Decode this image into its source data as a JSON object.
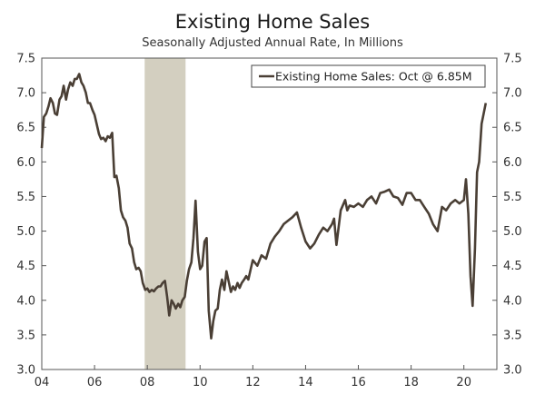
{
  "chart_data": {
    "type": "line",
    "title": "Existing Home Sales",
    "subtitle": "Seasonally Adjusted Annual Rate, In Millions",
    "xlabel": "",
    "ylabel": "",
    "xlim": [
      2004,
      2021.25
    ],
    "ylim": [
      3.0,
      7.5
    ],
    "x_ticks": [
      {
        "value": 2004,
        "label": "04"
      },
      {
        "value": 2006,
        "label": "06"
      },
      {
        "value": 2008,
        "label": "08"
      },
      {
        "value": 2010,
        "label": "10"
      },
      {
        "value": 2012,
        "label": "12"
      },
      {
        "value": 2014,
        "label": "14"
      },
      {
        "value": 2016,
        "label": "16"
      },
      {
        "value": 2018,
        "label": "18"
      },
      {
        "value": 2020,
        "label": "20"
      }
    ],
    "y_ticks": [
      "3.0",
      "3.5",
      "4.0",
      "4.5",
      "5.0",
      "5.5",
      "6.0",
      "6.5",
      "7.0",
      "7.5"
    ],
    "recession": {
      "start": 2007.9,
      "end": 2009.45,
      "color": "#d3cfc0"
    },
    "legend": {
      "label": "Existing Home Sales: Oct @ 6.85M",
      "position": "top-right"
    },
    "series": [
      {
        "name": "Existing Home Sales",
        "color": "#4a3f35",
        "x": [
          2004.0,
          2004.08,
          2004.17,
          2004.25,
          2004.33,
          2004.42,
          2004.5,
          2004.58,
          2004.67,
          2004.75,
          2004.83,
          2004.92,
          2005.0,
          2005.08,
          2005.17,
          2005.25,
          2005.33,
          2005.42,
          2005.5,
          2005.58,
          2005.67,
          2005.75,
          2005.83,
          2005.92,
          2006.0,
          2006.08,
          2006.17,
          2006.25,
          2006.33,
          2006.42,
          2006.5,
          2006.58,
          2006.67,
          2006.75,
          2006.83,
          2006.92,
          2007.0,
          2007.08,
          2007.17,
          2007.25,
          2007.33,
          2007.42,
          2007.5,
          2007.58,
          2007.67,
          2007.75,
          2007.83,
          2007.92,
          2008.0,
          2008.08,
          2008.17,
          2008.25,
          2008.33,
          2008.42,
          2008.5,
          2008.58,
          2008.67,
          2008.75,
          2008.83,
          2008.92,
          2009.0,
          2009.08,
          2009.17,
          2009.25,
          2009.33,
          2009.42,
          2009.5,
          2009.58,
          2009.67,
          2009.75,
          2009.83,
          2009.92,
          2010.0,
          2010.08,
          2010.17,
          2010.25,
          2010.33,
          2010.42,
          2010.5,
          2010.58,
          2010.67,
          2010.75,
          2010.83,
          2010.92,
          2011.0,
          2011.08,
          2011.17,
          2011.25,
          2011.33,
          2011.42,
          2011.5,
          2011.58,
          2011.67,
          2011.75,
          2011.83,
          2011.92,
          2012.0,
          2012.17,
          2012.33,
          2012.5,
          2012.67,
          2012.83,
          2013.0,
          2013.17,
          2013.33,
          2013.5,
          2013.67,
          2013.83,
          2014.0,
          2014.17,
          2014.33,
          2014.5,
          2014.67,
          2014.83,
          2015.0,
          2015.08,
          2015.17,
          2015.33,
          2015.5,
          2015.58,
          2015.67,
          2015.83,
          2016.0,
          2016.17,
          2016.33,
          2016.5,
          2016.67,
          2016.83,
          2017.0,
          2017.17,
          2017.33,
          2017.5,
          2017.67,
          2017.83,
          2018.0,
          2018.17,
          2018.33,
          2018.5,
          2018.67,
          2018.83,
          2019.0,
          2019.17,
          2019.33,
          2019.5,
          2019.67,
          2019.83,
          2020.0,
          2020.08,
          2020.17,
          2020.25,
          2020.33,
          2020.42,
          2020.5,
          2020.58,
          2020.67,
          2020.75,
          2020.83
        ],
        "y": [
          6.2,
          6.65,
          6.7,
          6.8,
          6.92,
          6.85,
          6.7,
          6.68,
          6.9,
          6.95,
          7.1,
          6.9,
          7.05,
          7.15,
          7.1,
          7.2,
          7.2,
          7.27,
          7.15,
          7.1,
          7.0,
          6.85,
          6.85,
          6.75,
          6.68,
          6.55,
          6.4,
          6.33,
          6.35,
          6.3,
          6.37,
          6.35,
          6.42,
          5.78,
          5.8,
          5.62,
          5.3,
          5.2,
          5.15,
          5.05,
          4.82,
          4.75,
          4.55,
          4.45,
          4.47,
          4.42,
          4.25,
          4.15,
          4.17,
          4.12,
          4.15,
          4.13,
          4.17,
          4.2,
          4.2,
          4.25,
          4.28,
          4.05,
          3.78,
          4.0,
          3.95,
          3.88,
          3.95,
          3.9,
          4.0,
          4.05,
          4.28,
          4.45,
          4.55,
          4.9,
          5.44,
          4.7,
          4.45,
          4.5,
          4.85,
          4.9,
          3.85,
          3.45,
          3.7,
          3.85,
          3.88,
          4.15,
          4.3,
          4.15,
          4.42,
          4.28,
          4.12,
          4.2,
          4.15,
          4.25,
          4.18,
          4.25,
          4.3,
          4.35,
          4.3,
          4.45,
          4.58,
          4.5,
          4.65,
          4.6,
          4.82,
          4.92,
          5.0,
          5.1,
          5.15,
          5.2,
          5.27,
          5.05,
          4.85,
          4.75,
          4.82,
          4.95,
          5.05,
          5.0,
          5.1,
          5.18,
          4.8,
          5.3,
          5.45,
          5.3,
          5.37,
          5.35,
          5.4,
          5.35,
          5.45,
          5.5,
          5.4,
          5.55,
          5.57,
          5.6,
          5.5,
          5.48,
          5.38,
          5.55,
          5.55,
          5.45,
          5.45,
          5.35,
          5.25,
          5.1,
          5.0,
          5.35,
          5.3,
          5.4,
          5.45,
          5.4,
          5.45,
          5.75,
          5.25,
          4.35,
          3.92,
          4.75,
          5.85,
          6.0,
          6.55,
          6.7,
          6.85
        ]
      }
    ]
  }
}
